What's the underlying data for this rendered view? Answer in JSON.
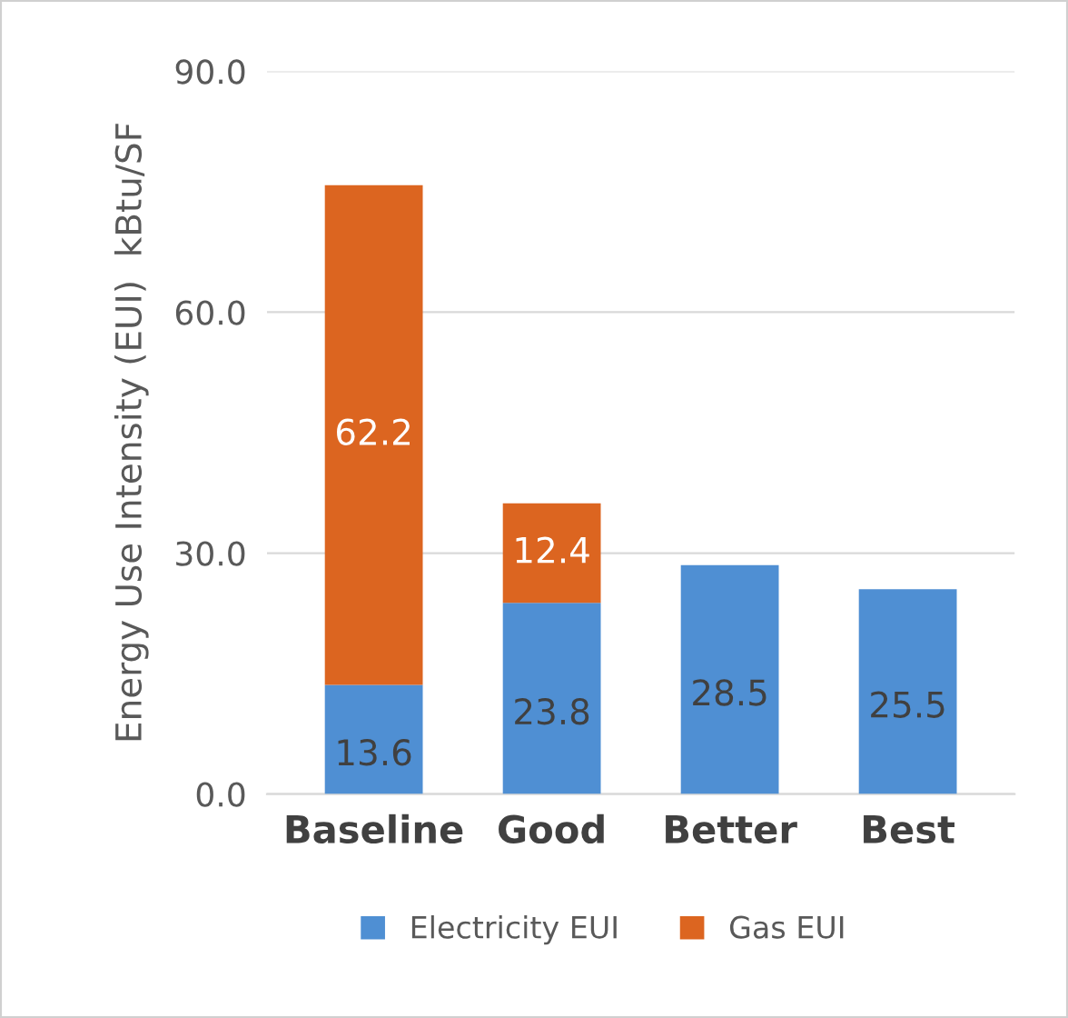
{
  "chart_data": {
    "type": "bar",
    "stacked": true,
    "ylabel": "Energy Use Intensity (EUI)  kBtu/SF",
    "categories": [
      "Baseline",
      "Good",
      "Better",
      "Best"
    ],
    "series": [
      {
        "name": "Electricity EUI",
        "color": "#4f8fd3",
        "values": [
          13.6,
          23.8,
          28.5,
          25.5
        ]
      },
      {
        "name": "Gas EUI",
        "color": "#dc6520",
        "values": [
          62.2,
          12.4,
          null,
          null
        ]
      }
    ],
    "ylim": [
      0,
      90
    ],
    "yticks": [
      {
        "value": 0,
        "label": "0.0"
      },
      {
        "value": 30,
        "label": "30.0"
      },
      {
        "value": 60,
        "label": "60.0"
      },
      {
        "value": 90,
        "label": "90.0"
      }
    ],
    "grid": "y",
    "legend": "bottom",
    "data_labels": true
  }
}
